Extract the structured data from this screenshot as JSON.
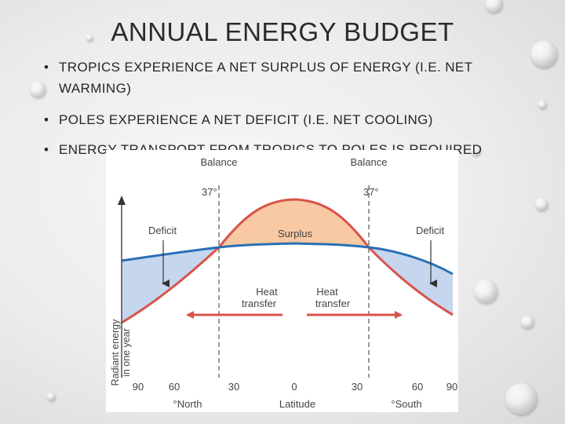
{
  "slide": {
    "title": "ANNUAL ENERGY BUDGET",
    "bullets": [
      "TROPICS EXPERIENCE A NET SURPLUS OF ENERGY (I.E. NET WARMING)",
      "POLES EXPERIENCE A NET DEFICIT (I.E. NET COOLING)",
      "ENERGY TRANSPORT FROM TROPICS TO POLES IS REQUIRED"
    ],
    "bullet_symbol": "•"
  },
  "figure": {
    "balance_left": "Balance",
    "balance_right": "Balance",
    "angle_left": "37°",
    "angle_right": "37°",
    "deficit_left": "Deficit",
    "deficit_right": "Deficit",
    "surplus": "Surplus",
    "heat_left_1": "Heat",
    "heat_left_2": "transfer",
    "heat_right_1": "Heat",
    "heat_right_2": "transfer",
    "ylabel_1": "Radiant energy",
    "ylabel_2": "in one year",
    "ticks": [
      "90",
      "60",
      "30",
      "0",
      "30",
      "60",
      "90"
    ],
    "north": "°North",
    "latitude": "Latitude",
    "south": "°South",
    "colors": {
      "incoming": "#d9534a",
      "outgoing": "#2a6fb5",
      "surplus_fill": "#f8c9a3",
      "deficit_fill": "#c5d6ee",
      "arrow": "#d9534a"
    }
  }
}
